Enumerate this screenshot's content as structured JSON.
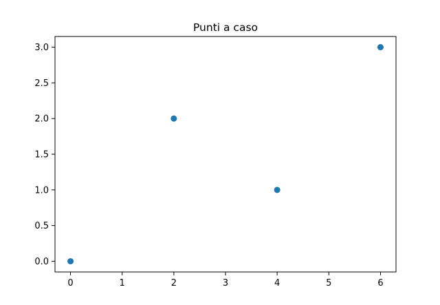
{
  "chart_data": {
    "type": "scatter",
    "title": "Punti a caso",
    "xlabel": "",
    "ylabel": "",
    "x": [
      0,
      2,
      4,
      6
    ],
    "y": [
      0,
      2,
      1,
      3
    ],
    "xlim": [
      -0.3,
      6.3
    ],
    "ylim": [
      -0.15,
      3.15
    ],
    "xticks": [
      0,
      1,
      2,
      3,
      4,
      5,
      6
    ],
    "xtick_labels": [
      "0",
      "1",
      "2",
      "3",
      "4",
      "5",
      "6"
    ],
    "yticks": [
      0,
      0.5,
      1,
      1.5,
      2,
      2.5,
      3
    ],
    "ytick_labels": [
      "0.0",
      "0.5",
      "1.0",
      "1.5",
      "2.0",
      "2.5",
      "3.0"
    ],
    "grid": false,
    "legend": "none",
    "marker_color": "#1f77b4"
  }
}
